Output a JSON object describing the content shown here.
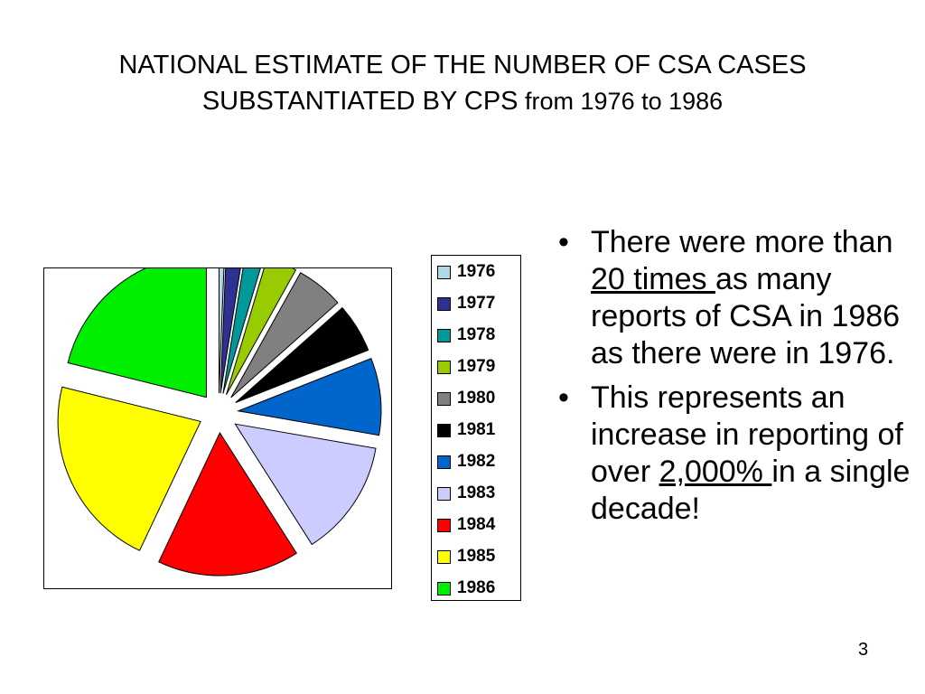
{
  "title": {
    "line1": "NATIONAL ESTIMATE OF THE NUMBER OF CSA CASES",
    "line2_main": "SUBSTANTIATED BY CPS",
    "line2_tail": " from 1976 to 1986"
  },
  "chart_data": {
    "type": "pie",
    "title": "",
    "categories": [
      "1976",
      "1977",
      "1978",
      "1979",
      "1980",
      "1981",
      "1982",
      "1983",
      "1984",
      "1985",
      "1986"
    ],
    "values": [
      0.6,
      1.8,
      2.0,
      3.3,
      5.1,
      5.3,
      8.3,
      12.6,
      15.3,
      20.8,
      20.1
    ],
    "colors": [
      "#ADD8E6",
      "#2E3192",
      "#009999",
      "#99CC00",
      "#808080",
      "#000000",
      "#0066CC",
      "#CCCCFF",
      "#FF0000",
      "#FFFF00",
      "#00EE00"
    ],
    "exploded": true,
    "legend": "right"
  },
  "bullets": [
    {
      "pre": "There were more than ",
      "emph": "20 times ",
      "post": "as many reports of CSA in 1986 as there were in 1976."
    },
    {
      "pre": "This represents an increase in reporting of over ",
      "emph": "2,000% ",
      "post": "in a single decade!"
    }
  ],
  "bullet_symbol": "•",
  "page_number": "3"
}
